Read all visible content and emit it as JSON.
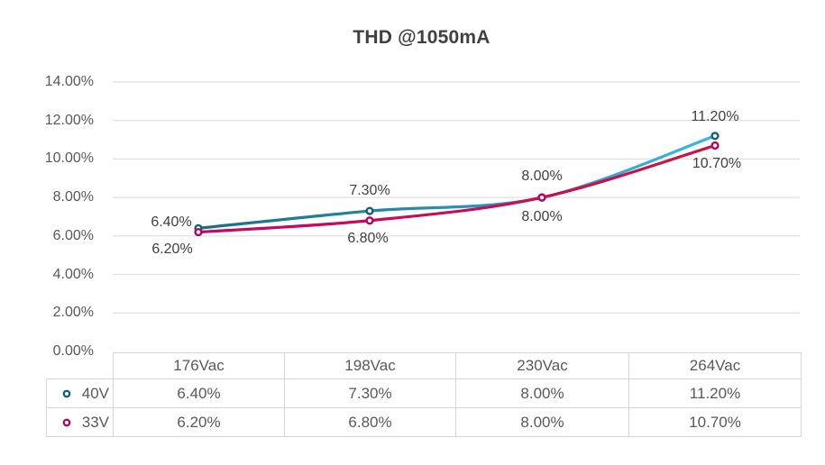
{
  "page": {
    "title": "THD @1050mA"
  },
  "chart_data": {
    "type": "line",
    "title": "THD @1050mA",
    "categories": [
      "176Vac",
      "198Vac",
      "230Vac",
      "264Vac"
    ],
    "series": [
      {
        "name": "40V",
        "values": [
          6.4,
          7.3,
          8.0,
          11.2
        ],
        "labels": [
          "6.40%",
          "7.30%",
          "8.00%",
          "11.20%"
        ],
        "line_color_start": "#1C6C84",
        "line_color_end": "#35B6E9",
        "marker_color": "#11607A"
      },
      {
        "name": "33V",
        "values": [
          6.2,
          6.8,
          8.0,
          10.7
        ],
        "labels": [
          "6.20%",
          "6.80%",
          "8.00%",
          "10.70%"
        ],
        "line_color_start": "#C70568",
        "line_color_end": "#CC1340",
        "marker_color": "#BC0062"
      }
    ],
    "y_axis": {
      "ticks": [
        "14.00%",
        "12.00%",
        "10.00%",
        "8.00%",
        "6.00%",
        "4.00%",
        "2.00%",
        "0.00%"
      ],
      "min": 0,
      "max": 14,
      "major_unit": 2,
      "unit": "%"
    },
    "grid": true,
    "smooth_lines": true,
    "data_table_visible": true,
    "legend_position": "table-left",
    "label_offsets": [
      [
        [
          -30,
          -6
        ],
        [
          0,
          -22
        ],
        [
          0,
          -23
        ],
        [
          0,
          -21
        ]
      ],
      [
        [
          -29,
          19
        ],
        [
          -2,
          20
        ],
        [
          0,
          22
        ],
        [
          2,
          21
        ]
      ]
    ],
    "style": {
      "title_color": "#404040",
      "axis_label_color": "#595959",
      "data_label_color": "#404040",
      "table_text_color": "#595959",
      "gridline_color": "#D9D9D9",
      "table_border_color": "#D6D6D6",
      "background": "#FFFFFF"
    }
  },
  "table": {
    "corner_label": "",
    "col_headers": [
      "176Vac",
      "198Vac",
      "230Vac",
      "264Vac"
    ],
    "rows": [
      {
        "legend": "40V",
        "cells": [
          "6.40%",
          "7.30%",
          "8.00%",
          "11.20%"
        ]
      },
      {
        "legend": "33V",
        "cells": [
          "6.20%",
          "6.80%",
          "8.00%",
          "10.70%"
        ]
      }
    ]
  }
}
